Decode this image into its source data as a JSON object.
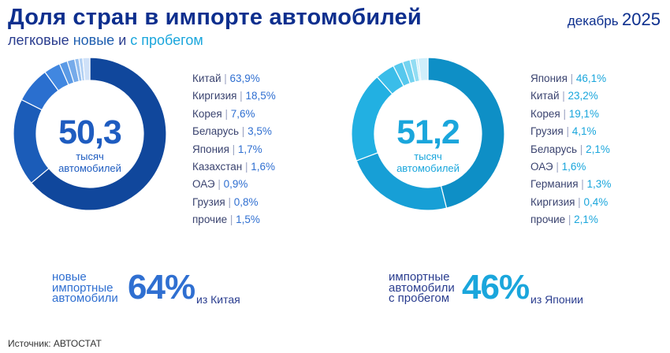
{
  "header": {
    "title": "Доля стран в импорте автомобилей",
    "subtitle_prefix": "легковые",
    "subtitle_new": "новые",
    "subtitle_and": "и",
    "subtitle_used": "с пробегом",
    "date_month": "декабрь",
    "date_year": "2025"
  },
  "chart_data": [
    {
      "type": "pie",
      "variant": "donut",
      "title": "легковые новые",
      "center_value": "50,3",
      "center_label_line1": "тысяч",
      "center_label_line2": "автомобилей",
      "categories": [
        "Китай",
        "Киргизия",
        "Корея",
        "Беларусь",
        "Япония",
        "Казахстан",
        "ОАЭ",
        "Грузия",
        "прочие"
      ],
      "values": [
        63.9,
        18.5,
        7.6,
        3.5,
        1.7,
        1.6,
        0.9,
        0.8,
        1.5
      ],
      "labels": [
        "63,9%",
        "18,5%",
        "7,6%",
        "3,5%",
        "1,7%",
        "1,6%",
        "0,9%",
        "0,8%",
        "1,5%"
      ],
      "colors": [
        "#10479c",
        "#1b5cb8",
        "#2a6fcf",
        "#4187e0",
        "#5a9ae6",
        "#76abea",
        "#92bdee",
        "#b0cff3",
        "#cfe1f8"
      ],
      "callout": {
        "line1": "новые",
        "line2": "импортные",
        "line3": "автомобили",
        "percent": "64%",
        "from": "из Китая",
        "color": "#2f6fd1"
      }
    },
    {
      "type": "pie",
      "variant": "donut",
      "title": "легковые с пробегом",
      "center_value": "51,2",
      "center_label_line1": "тысяч",
      "center_label_line2": "автомобилей",
      "categories": [
        "Япония",
        "Китай",
        "Корея",
        "Грузия",
        "Беларусь",
        "ОАЭ",
        "Германия",
        "Киргизия",
        "прочие"
      ],
      "values": [
        46.1,
        23.2,
        19.1,
        4.1,
        2.1,
        1.6,
        1.3,
        0.4,
        2.1
      ],
      "labels": [
        "46,1%",
        "23,2%",
        "19,1%",
        "4,1%",
        "2,1%",
        "1,6%",
        "1,3%",
        "0,4%",
        "2,1%"
      ],
      "colors": [
        "#0e8fc6",
        "#179fd6",
        "#22b0e2",
        "#3abde9",
        "#56c8ed",
        "#74d3f0",
        "#92ddf3",
        "#b1e7f7",
        "#cfeffb"
      ],
      "callout": {
        "line1": "импортные",
        "line2": "автомобили",
        "line3": "с пробегом",
        "percent": "46%",
        "from": "из Японии",
        "color": "#1aa6dc"
      }
    }
  ],
  "source": "Источник: АВТОСТАТ"
}
